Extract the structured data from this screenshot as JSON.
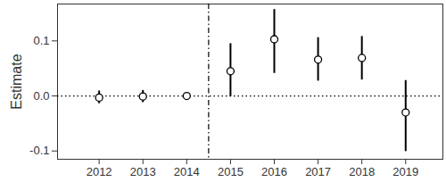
{
  "chart_data": {
    "type": "scatter",
    "x": [
      2012,
      2013,
      2014,
      2015,
      2016,
      2017,
      2018,
      2019
    ],
    "values": [
      -0.003,
      -0.001,
      0.0,
      0.045,
      0.103,
      0.066,
      0.069,
      -0.03
    ],
    "lower": [
      -0.014,
      -0.012,
      0.0,
      -0.001,
      0.041,
      0.027,
      0.029,
      -0.101
    ],
    "upper": [
      0.009,
      0.01,
      0.0,
      0.095,
      0.157,
      0.106,
      0.108,
      0.028
    ],
    "y_label": "Estimate",
    "xlim": [
      2011.05,
      2019.85
    ],
    "xticks": [
      2012,
      2013,
      2014,
      2015,
      2016,
      2017,
      2018,
      2019
    ],
    "ylim": [
      -0.115,
      0.167
    ],
    "yticks": [
      {
        "value": -0.1,
        "label": "-0.1"
      },
      {
        "value": 0.0,
        "label": "0.0"
      },
      {
        "value": 0.1,
        "label": "0.1"
      }
    ],
    "vline": 2014.5,
    "hline": 0,
    "color": "#000000",
    "marker": "circle",
    "grid": false
  }
}
